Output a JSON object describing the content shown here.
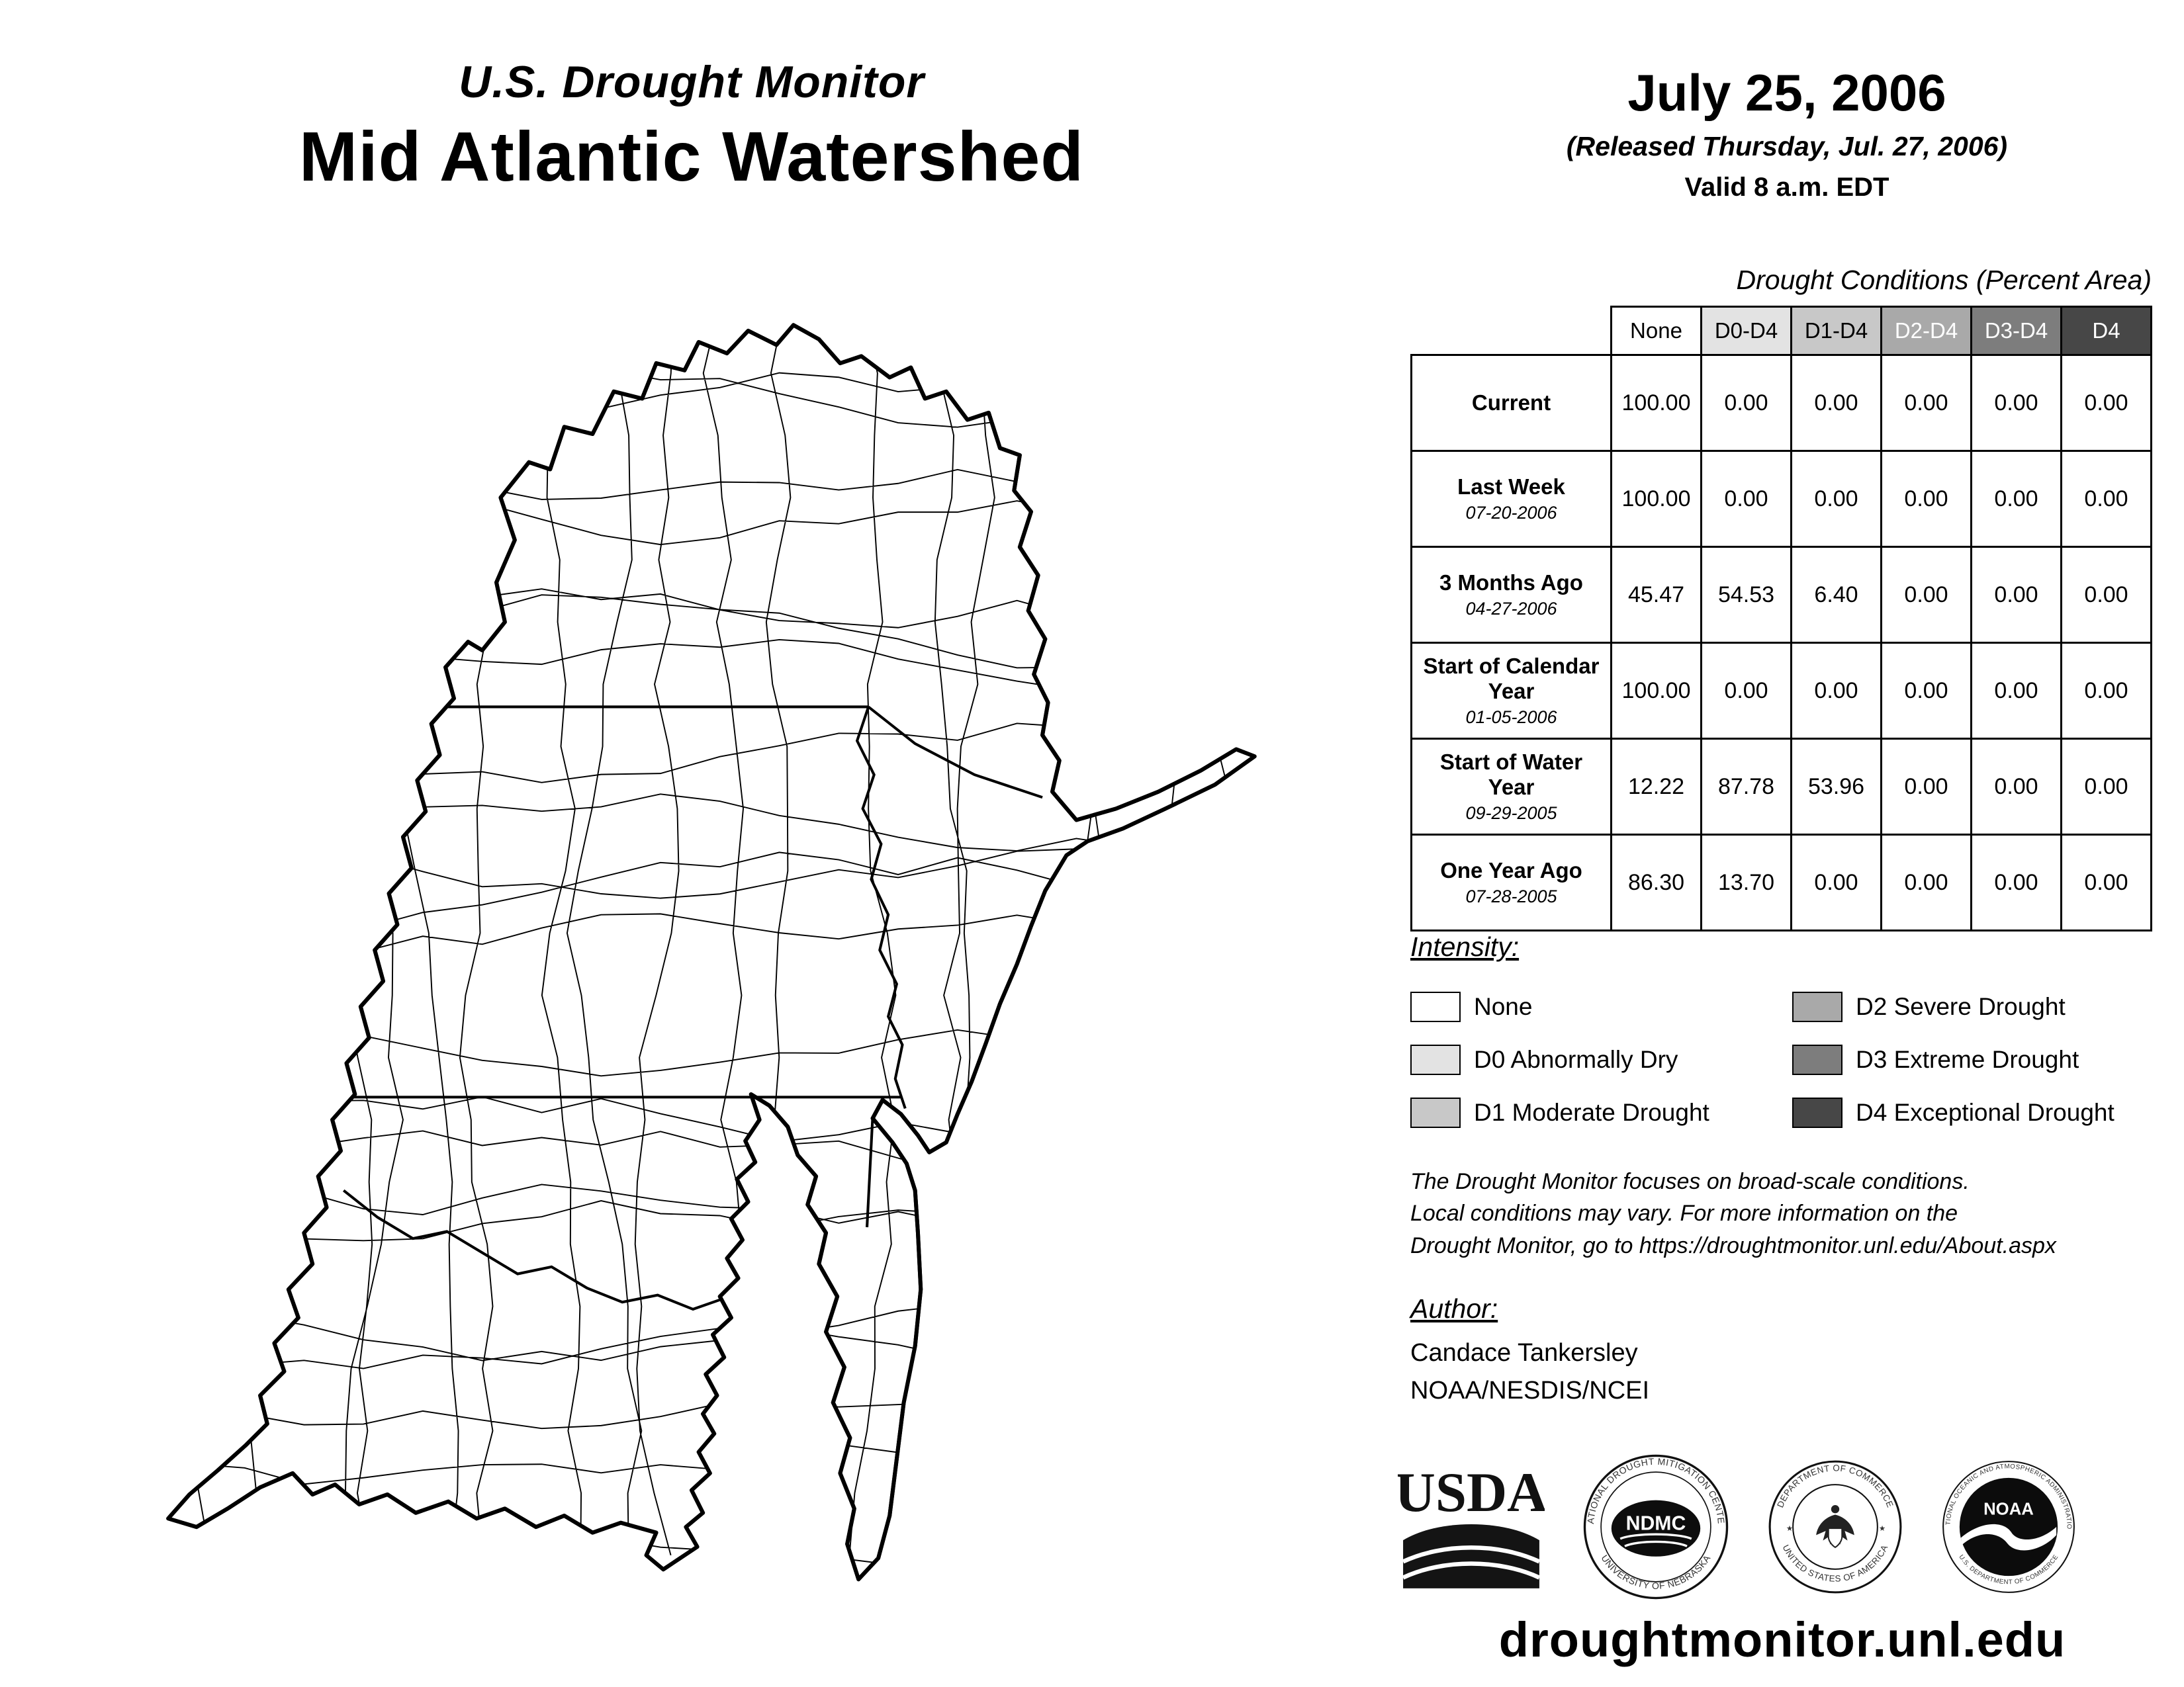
{
  "header": {
    "program_title": "U.S. Drought Monitor",
    "region_title": "Mid Atlantic Watershed",
    "date": "July 25, 2006",
    "released": "(Released Thursday, Jul. 27, 2006)",
    "valid": "Valid 8 a.m. EDT"
  },
  "table": {
    "title": "Drought Conditions (Percent Area)",
    "columns": [
      {
        "label": "None",
        "bg": "#ffffff",
        "fg": "#000000"
      },
      {
        "label": "D0-D4",
        "bg": "#e3e3e3",
        "fg": "#000000"
      },
      {
        "label": "D1-D4",
        "bg": "#c8c8c8",
        "fg": "#000000"
      },
      {
        "label": "D2-D4",
        "bg": "#a9a9a9",
        "fg": "#ffffff"
      },
      {
        "label": "D3-D4",
        "bg": "#7d7d7d",
        "fg": "#ffffff"
      },
      {
        "label": "D4",
        "bg": "#474747",
        "fg": "#ffffff"
      }
    ],
    "rows": [
      {
        "label": "Current",
        "date": "",
        "values": [
          "100.00",
          "0.00",
          "0.00",
          "0.00",
          "0.00",
          "0.00"
        ]
      },
      {
        "label": "Last Week",
        "date": "07-20-2006",
        "values": [
          "100.00",
          "0.00",
          "0.00",
          "0.00",
          "0.00",
          "0.00"
        ]
      },
      {
        "label": "3 Months Ago",
        "date": "04-27-2006",
        "values": [
          "45.47",
          "54.53",
          "6.40",
          "0.00",
          "0.00",
          "0.00"
        ]
      },
      {
        "label": "Start of Calendar Year",
        "date": "01-05-2006",
        "values": [
          "100.00",
          "0.00",
          "0.00",
          "0.00",
          "0.00",
          "0.00"
        ]
      },
      {
        "label": "Start of Water Year",
        "date": "09-29-2005",
        "values": [
          "12.22",
          "87.78",
          "53.96",
          "0.00",
          "0.00",
          "0.00"
        ]
      },
      {
        "label": "One Year Ago",
        "date": "07-28-2005",
        "values": [
          "86.30",
          "13.70",
          "0.00",
          "0.00",
          "0.00",
          "0.00"
        ]
      }
    ]
  },
  "legend": {
    "title": "Intensity:",
    "items": [
      {
        "label": "None",
        "color": "#ffffff"
      },
      {
        "label": "D0 Abnormally Dry",
        "color": "#e3e3e3"
      },
      {
        "label": "D1 Moderate Drought",
        "color": "#c8c8c8"
      },
      {
        "label": "D2 Severe Drought",
        "color": "#a9a9a9"
      },
      {
        "label": "D3 Extreme Drought",
        "color": "#7d7d7d"
      },
      {
        "label": "D4 Exceptional Drought",
        "color": "#474747"
      }
    ]
  },
  "disclaimer": {
    "line1": "The Drought Monitor focuses on broad-scale conditions.",
    "line2": "Local conditions may vary. For more information on the",
    "line3": "Drought Monitor, go to https://droughtmonitor.unl.edu/About.aspx"
  },
  "author": {
    "heading": "Author:",
    "name": "Candace Tankersley",
    "org": "NOAA/NESDIS/NCEI"
  },
  "logos": {
    "usda_label": "USDA",
    "ndmc_center": "NDMC",
    "ndmc_ring_top": "NATIONAL DROUGHT MITIGATION CENTER",
    "ndmc_ring_bottom": "UNIVERSITY OF NEBRASKA",
    "doc_ring_top": "DEPARTMENT OF COMMERCE",
    "doc_ring_bottom": "UNITED STATES OF AMERICA",
    "noaa_center": "NOAA",
    "noaa_ring_top": "NATIONAL OCEANIC AND ATMOSPHERIC ADMINISTRATION",
    "noaa_ring_bottom": "U.S. DEPARTMENT OF COMMERCE"
  },
  "footer": {
    "url": "droughtmonitor.unl.edu"
  }
}
